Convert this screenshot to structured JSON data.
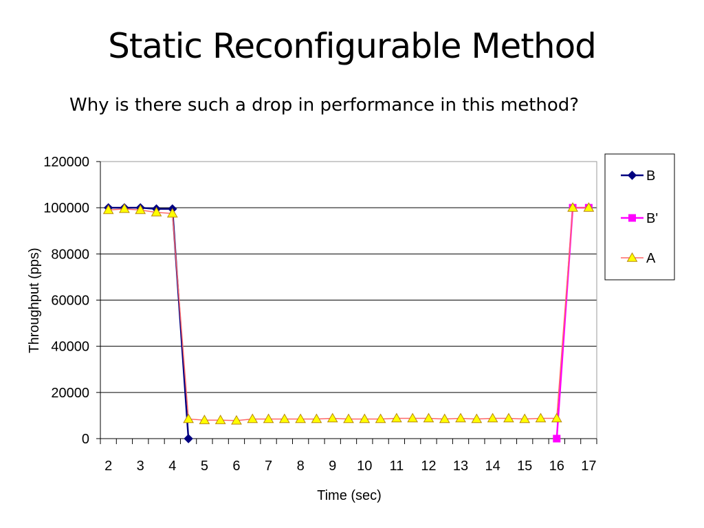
{
  "slide": {
    "title": "Static Reconfigurable Method",
    "subtitle": "Why is there such a drop in performance in this method?"
  },
  "chart_data": {
    "type": "line",
    "title": "",
    "xlabel": "Time (sec)",
    "ylabel": "Throughput (pps)",
    "xlim": [
      1.75,
      17.25
    ],
    "ylim": [
      0,
      120000
    ],
    "x_ticks": [
      2,
      3,
      4,
      5,
      6,
      7,
      8,
      9,
      10,
      11,
      12,
      13,
      14,
      15,
      16,
      17
    ],
    "y_ticks": [
      0,
      20000,
      40000,
      60000,
      80000,
      100000,
      120000
    ],
    "grid": "horizontal",
    "legend": "right",
    "series": [
      {
        "name": "B",
        "color": "#000080",
        "marker": "diamond",
        "x": [
          2,
          2.5,
          3,
          3.5,
          4,
          4.5
        ],
        "y": [
          100000,
          100000,
          100000,
          99500,
          99500,
          0
        ]
      },
      {
        "name": "B'",
        "color": "#FF00FF",
        "marker": "square",
        "x": [
          16,
          16.5,
          17
        ],
        "y": [
          0,
          100000,
          100000
        ]
      },
      {
        "name": "A",
        "color": "#FF6666",
        "marker": "triangle",
        "marker_fill": "#FFFF00",
        "x": [
          2,
          2.5,
          3,
          3.5,
          4,
          4.5,
          5,
          5.5,
          6,
          6.5,
          7,
          7.5,
          8,
          8.5,
          9,
          9.5,
          10,
          10.5,
          11,
          11.5,
          12,
          12.5,
          13,
          13.5,
          14,
          14.5,
          15,
          15.5,
          16,
          16.5,
          17
        ],
        "y": [
          99000,
          99500,
          99000,
          98000,
          97500,
          8500,
          8000,
          8000,
          7800,
          8500,
          8500,
          8500,
          8500,
          8500,
          8800,
          8500,
          8500,
          8500,
          8800,
          8800,
          8800,
          8500,
          8800,
          8500,
          8800,
          8800,
          8500,
          8800,
          8800,
          100000,
          100000
        ]
      }
    ]
  }
}
